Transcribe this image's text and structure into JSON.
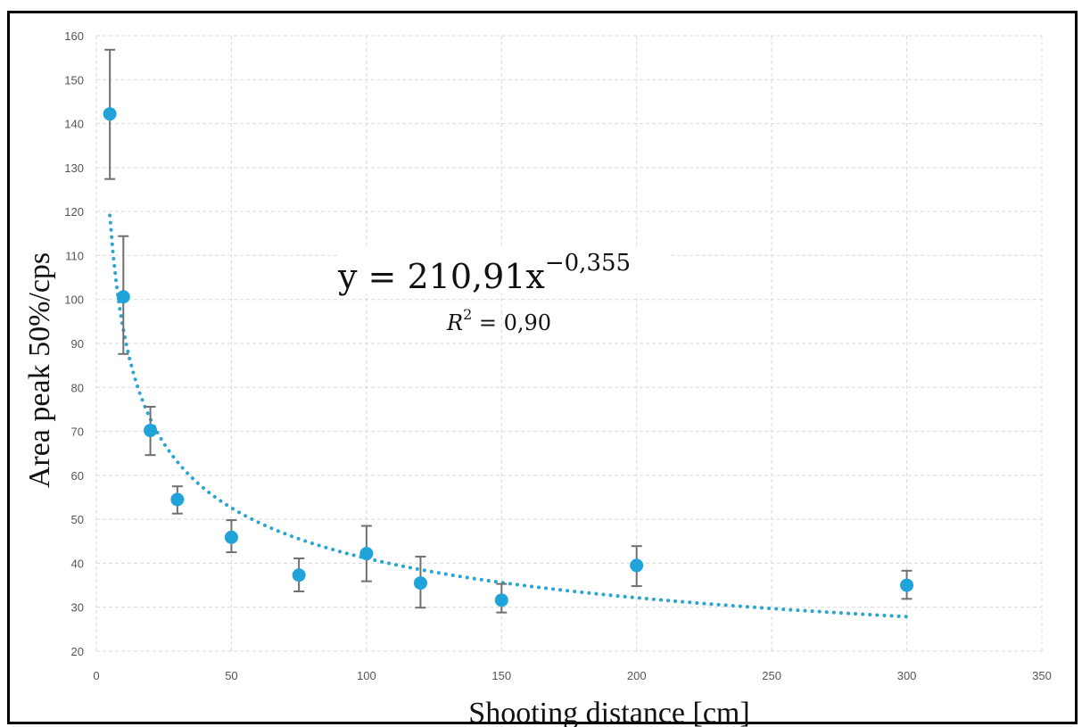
{
  "chart_data": {
    "type": "scatter",
    "xlabel": "Shooting distance [cm]",
    "ylabel": "Area peak 50%/cps",
    "xlim": [
      0,
      350
    ],
    "ylim": [
      20,
      160
    ],
    "x_ticks": [
      0,
      50,
      100,
      150,
      200,
      250,
      300,
      350
    ],
    "y_ticks": [
      20,
      30,
      40,
      50,
      60,
      70,
      80,
      90,
      100,
      110,
      120,
      130,
      140,
      150,
      160
    ],
    "grid": true,
    "points": [
      {
        "x": 5,
        "y": 142.2,
        "err_low": 127.4,
        "err_high": 156.8
      },
      {
        "x": 10,
        "y": 100.6,
        "err_low": 87.6,
        "err_high": 114.4
      },
      {
        "x": 20,
        "y": 70.2,
        "err_low": 64.6,
        "err_high": 75.6
      },
      {
        "x": 30,
        "y": 54.5,
        "err_low": 51.3,
        "err_high": 57.5
      },
      {
        "x": 50,
        "y": 45.9,
        "err_low": 42.5,
        "err_high": 49.8
      },
      {
        "x": 75,
        "y": 37.3,
        "err_low": 33.6,
        "err_high": 41.1
      },
      {
        "x": 100,
        "y": 42.2,
        "err_low": 35.9,
        "err_high": 48.5
      },
      {
        "x": 120,
        "y": 35.5,
        "err_low": 29.9,
        "err_high": 41.5
      },
      {
        "x": 150,
        "y": 31.6,
        "err_low": 28.8,
        "err_high": 35.3
      },
      {
        "x": 200,
        "y": 39.5,
        "err_low": 34.8,
        "err_high": 43.9
      },
      {
        "x": 300,
        "y": 35.0,
        "err_low": 31.9,
        "err_high": 38.3
      }
    ],
    "trendline": {
      "type": "power",
      "a": 210.91,
      "b": -0.355,
      "x_range": [
        5,
        300
      ],
      "equation_lhs": "y = 210,91x",
      "equation_exp": "−0,355",
      "r2_label": "R",
      "r2_sup": "2",
      "r2_value": " = 0,90"
    },
    "colors": {
      "marker": "#1fa3d8",
      "trendline": "#2aa6cf",
      "error_bar": "#707070",
      "grid": "#d9d9d9"
    }
  }
}
